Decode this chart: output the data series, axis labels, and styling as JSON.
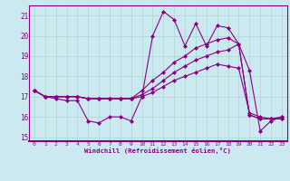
{
  "xlabel": "Windchill (Refroidissement éolien,°C)",
  "background_color": "#cce8f0",
  "grid_color": "#aad8cc",
  "line_color": "#880088",
  "xlim_min": -0.5,
  "xlim_max": 23.5,
  "ylim_min": 14.8,
  "ylim_max": 21.5,
  "yticks": [
    15,
    16,
    17,
    18,
    19,
    20,
    21
  ],
  "xticks": [
    0,
    1,
    2,
    3,
    4,
    5,
    6,
    7,
    8,
    9,
    10,
    11,
    12,
    13,
    14,
    15,
    16,
    17,
    18,
    19,
    20,
    21,
    22,
    23
  ],
  "series": [
    [
      17.3,
      17.0,
      16.9,
      16.8,
      16.8,
      15.8,
      15.7,
      16.0,
      16.0,
      15.8,
      17.0,
      20.0,
      21.2,
      20.8,
      19.5,
      20.6,
      19.5,
      20.5,
      20.4,
      19.6,
      18.3,
      15.3,
      15.8,
      16.0
    ],
    [
      17.3,
      17.0,
      17.0,
      17.0,
      17.0,
      16.9,
      16.9,
      16.9,
      16.9,
      16.9,
      17.0,
      17.2,
      17.5,
      17.8,
      18.0,
      18.2,
      18.4,
      18.6,
      18.5,
      18.4,
      16.2,
      16.0,
      15.9,
      16.0
    ],
    [
      17.3,
      17.0,
      17.0,
      17.0,
      17.0,
      16.9,
      16.9,
      16.9,
      16.9,
      16.9,
      17.3,
      17.8,
      18.2,
      18.7,
      19.0,
      19.4,
      19.6,
      19.8,
      19.9,
      19.6,
      16.1,
      15.9,
      15.9,
      15.9
    ],
    [
      17.3,
      17.0,
      17.0,
      17.0,
      17.0,
      16.9,
      16.9,
      16.9,
      16.9,
      16.9,
      17.1,
      17.4,
      17.8,
      18.2,
      18.5,
      18.8,
      19.0,
      19.2,
      19.3,
      19.6,
      16.1,
      15.9,
      15.9,
      15.9
    ]
  ]
}
